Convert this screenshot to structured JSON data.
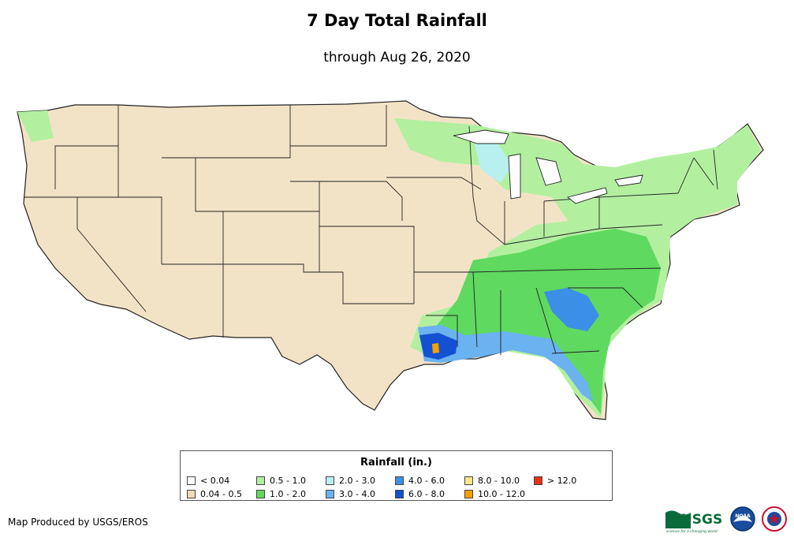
{
  "header": {
    "title": "7 Day Total Rainfall",
    "subtitle": "through Aug 26, 2020"
  },
  "legend": {
    "title": "Rainfall (in.)",
    "items": [
      {
        "label": "< 0.04",
        "color": "#ffffff"
      },
      {
        "label": "0.04 - 0.5",
        "color": "#f0d9b5"
      },
      {
        "label": "0.5 - 1.0",
        "color": "#b2f0a0"
      },
      {
        "label": "1.0 - 2.0",
        "color": "#5fd95f"
      },
      {
        "label": "2.0 - 3.0",
        "color": "#b8f0f0"
      },
      {
        "label": "3.0 - 4.0",
        "color": "#6ab2f0"
      },
      {
        "label": "4.0 - 6.0",
        "color": "#3c8fe6"
      },
      {
        "label": "6.0 - 8.0",
        "color": "#1450d2"
      },
      {
        "label": "8.0 - 10.0",
        "color": "#fae68c"
      },
      {
        "label": "10.0 - 12.0",
        "color": "#f5a000"
      },
      {
        "label": "> 12.0",
        "color": "#e63214"
      }
    ]
  },
  "footer": {
    "credit": "Map Produced by USGS/EROS"
  },
  "logos": {
    "usgs_text": "USGS",
    "usgs_tagline": "science for a changing world",
    "noaa_text": "NOAA"
  }
}
